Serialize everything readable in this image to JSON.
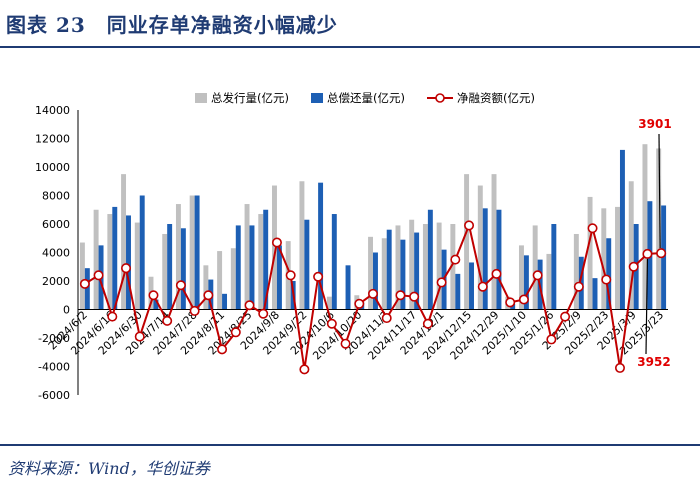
{
  "figure": {
    "title": "图表 23　同业存单净融资小幅减少",
    "source": "资料来源：Wind，华创证券"
  },
  "colors": {
    "issuance": "#c0c0c0",
    "repayment": "#1d5fb4",
    "net": "#c00000",
    "marker_fill": "#ffffff",
    "title_blue": "#1f3b73",
    "annotation": "#e00000"
  },
  "chart_data": {
    "type": "bar",
    "categories": [
      "2024/6/2",
      "2024/6/9",
      "2024/6/16",
      "2024/6/23",
      "2024/6/30",
      "2024/7/7",
      "2024/7/14",
      "2024/7/21",
      "2024/7/28",
      "2024/8/4",
      "2024/8/11",
      "2024/8/18",
      "2024/8/25",
      "2024/9/1",
      "2024/9/8",
      "2024/9/15",
      "2024/9/22",
      "2024/9/29",
      "2024/10/6",
      "2024/10/13",
      "2024/10/20",
      "2024/10/27",
      "2024/11/3",
      "2024/11/10",
      "2024/11/17",
      "2024/11/24",
      "2024/12/1",
      "2024/12/8",
      "2024/12/15",
      "2024/12/22",
      "2024/12/29",
      "2025/1/5",
      "2025/1/10",
      "2025/1/19",
      "2025/1/26",
      "2025/2/2",
      "2025/2/9",
      "2025/2/16",
      "2025/2/23",
      "2025/3/2",
      "2025/3/9",
      "2025/3/16",
      "2025/3/23"
    ],
    "x_tick_labels": [
      "2024/6/2",
      "2024/6/16",
      "2024/6/30",
      "2024/7/14",
      "2024/7/28",
      "2024/8/11",
      "2024/8/25",
      "2024/9/8",
      "2024/9/22",
      "2024/10/6",
      "2024/10/20",
      "2024/11/3",
      "2024/11/17",
      "2024/12/1",
      "2024/12/15",
      "2024/12/29",
      "2025/1/10",
      "2025/1/26",
      "2025/2/9",
      "2025/2/23",
      "2025/3/9",
      "2025/3/23"
    ],
    "series": [
      {
        "name": "总发行量(亿元)",
        "kind": "bar",
        "values": [
          4700,
          7000,
          6700,
          9500,
          6100,
          2300,
          5300,
          7400,
          8000,
          3100,
          4100,
          4300,
          7400,
          6700,
          8700,
          4800,
          9000,
          0,
          900,
          0,
          1000,
          5100,
          5000,
          5900,
          6300,
          6000,
          6100,
          6000,
          9500,
          8700,
          9500,
          900,
          4500,
          5900,
          3900,
          0,
          5300,
          7900,
          7100,
          7200,
          9000,
          11600,
          11300
        ],
        "color_key": "issuance"
      },
      {
        "name": "总偿还量(亿元)",
        "kind": "bar",
        "values": [
          2900,
          4500,
          7200,
          6600,
          8000,
          700,
          6000,
          5700,
          8000,
          2100,
          1100,
          5900,
          5900,
          7000,
          4500,
          2000,
          6300,
          8900,
          6700,
          3100,
          500,
          4000,
          5600,
          4900,
          5400,
          7000,
          4200,
          2500,
          3300,
          7100,
          7000,
          400,
          3800,
          3500,
          6000,
          0,
          3700,
          2200,
          5000,
          11200,
          6000,
          7600,
          7300
        ],
        "color_key": "repayment"
      },
      {
        "name": "净融资额(亿元)",
        "kind": "line",
        "values": [
          1800,
          2400,
          -500,
          2900,
          -1900,
          1000,
          -800,
          1700,
          -100,
          1000,
          -2800,
          -1600,
          300,
          -300,
          4700,
          2400,
          -4200,
          2300,
          -1000,
          -2400,
          400,
          1100,
          -600,
          1000,
          900,
          -1000,
          1900,
          3500,
          5900,
          1600,
          2500,
          500,
          700,
          2400,
          -2100,
          -500,
          1600,
          5700,
          2100,
          -4100,
          3000,
          3901,
          3952
        ]
      }
    ],
    "ylim": [
      -6000,
      14000
    ],
    "yticks": [
      -6000,
      -4000,
      -2000,
      0,
      2000,
      4000,
      6000,
      8000,
      10000,
      12000,
      14000
    ],
    "xlabel": "",
    "ylabel": "",
    "legend_position": "top",
    "annotations": [
      {
        "text": "3901",
        "at_index": 41
      },
      {
        "text": "3952",
        "at_index": 42
      }
    ]
  }
}
